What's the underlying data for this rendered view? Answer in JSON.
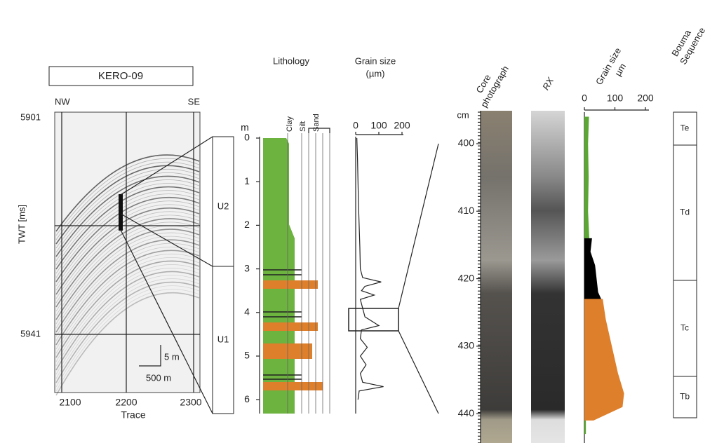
{
  "seismic": {
    "title": "KERO-09",
    "left_label": "NW",
    "right_label": "SE",
    "y_axis_label": "TWT [ms]",
    "y_ticks": [
      5901,
      5941
    ],
    "x_ticks": [
      2100,
      2200,
      2300
    ],
    "x_axis_label": "Trace",
    "scale_vertical": "5 m",
    "scale_horizontal": "500 m"
  },
  "log": {
    "depth_unit": "m",
    "depth_ticks": [
      0,
      1,
      2,
      3,
      4,
      5,
      6
    ],
    "units": [
      "U2",
      "U1"
    ],
    "lithology_title": "Lithology",
    "lithology_classes": [
      "Clay",
      "Silt",
      "Sand"
    ],
    "grain_size_title": [
      "Grain size",
      "(µm)"
    ],
    "grain_size_ticks": [
      0,
      100,
      200
    ],
    "grain_size": {
      "depths": [
        0,
        0.5,
        1,
        1.5,
        2,
        2.5,
        3,
        3.2,
        3.3,
        3.4,
        3.5,
        3.6,
        3.7,
        3.9,
        4.1,
        4.3,
        4.4,
        4.6,
        4.8,
        5,
        5.2,
        5.4,
        5.6,
        5.7,
        5.8,
        6
      ],
      "values": [
        5,
        8,
        10,
        12,
        15,
        18,
        20,
        30,
        110,
        40,
        25,
        80,
        20,
        30,
        40,
        100,
        25,
        20,
        50,
        20,
        45,
        20,
        30,
        120,
        15,
        10
      ]
    }
  },
  "core": {
    "photo_title": [
      "Core",
      "photograph"
    ],
    "rx_title": "RX",
    "depth_unit": "cm",
    "depth_ticks": [
      400,
      410,
      420,
      430,
      440
    ],
    "grain_size_title": [
      "Grain size",
      "µm"
    ],
    "grain_size_ticks": [
      0,
      100,
      200
    ],
    "grain_size_sections": [
      {
        "color": "#5aa832",
        "depths": [
          396,
          400,
          405,
          410,
          414
        ],
        "values": [
          15,
          12,
          14,
          12,
          16
        ]
      },
      {
        "color": "#000000",
        "depths": [
          414,
          416,
          418,
          420,
          422,
          423
        ],
        "values": [
          25,
          20,
          35,
          40,
          45,
          55
        ]
      },
      {
        "color": "#de7f2b",
        "depths": [
          423,
          426,
          430,
          434,
          437,
          439,
          441
        ],
        "values": [
          60,
          70,
          90,
          110,
          130,
          125,
          30
        ]
      },
      {
        "color": "#5aa832",
        "depths": [
          441,
          443
        ],
        "values": [
          5,
          5
        ]
      }
    ],
    "bouma_title": [
      "Bouma",
      "Sequence"
    ],
    "bouma": [
      "Te",
      "Td",
      "Tc",
      "Tb"
    ]
  }
}
